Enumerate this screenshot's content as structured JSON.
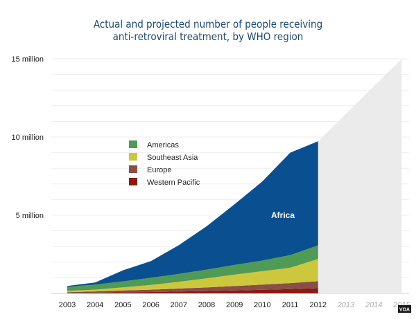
{
  "chart_data": {
    "type": "area",
    "title_line1": "Actual and projected number of people receiving",
    "title_line2": "anti-retroviral treatment, by WHO region",
    "y_ticks": [
      {
        "value": 15,
        "label": "15 million"
      },
      {
        "value": 10,
        "label": "10 million"
      },
      {
        "value": 5,
        "label": "5 million"
      }
    ],
    "ylim": [
      0,
      15
    ],
    "x_actual": [
      "2003",
      "2004",
      "2005",
      "2006",
      "2007",
      "2008",
      "2009",
      "2010",
      "2011",
      "2012"
    ],
    "x_projected": [
      "2013",
      "2014",
      "2015"
    ],
    "series": [
      {
        "name": "Western Pacific",
        "color": "#8a1a14",
        "values": [
          0.03,
          0.05,
          0.07,
          0.09,
          0.12,
          0.15,
          0.19,
          0.23,
          0.28,
          0.33
        ]
      },
      {
        "name": "Europe",
        "color": "#8a4d47",
        "values": [
          0.05,
          0.08,
          0.12,
          0.15,
          0.19,
          0.23,
          0.28,
          0.33,
          0.38,
          0.45
        ]
      },
      {
        "name": "Southeast Asia",
        "color": "#cdc73e",
        "values": [
          0.08,
          0.11,
          0.2,
          0.3,
          0.43,
          0.58,
          0.73,
          0.86,
          0.98,
          1.42
        ]
      },
      {
        "name": "Americas",
        "color": "#4f9a55",
        "values": [
          0.26,
          0.32,
          0.38,
          0.46,
          0.51,
          0.56,
          0.62,
          0.68,
          0.81,
          0.87
        ]
      },
      {
        "name": "Africa",
        "color": "#0a4f8f",
        "values": [
          0.06,
          0.14,
          0.71,
          1.06,
          1.83,
          2.77,
          3.88,
          5.06,
          6.55,
          6.66
        ]
      }
    ],
    "projection": {
      "start_year": "2012",
      "start_value": 9.73,
      "end_year": "2015",
      "end_value": 15,
      "color": "#ebebec"
    },
    "legend_order": [
      "Americas",
      "Southeast Asia",
      "Europe",
      "Western Pacific"
    ],
    "region_label": "Africa"
  },
  "watermark": "VOA"
}
